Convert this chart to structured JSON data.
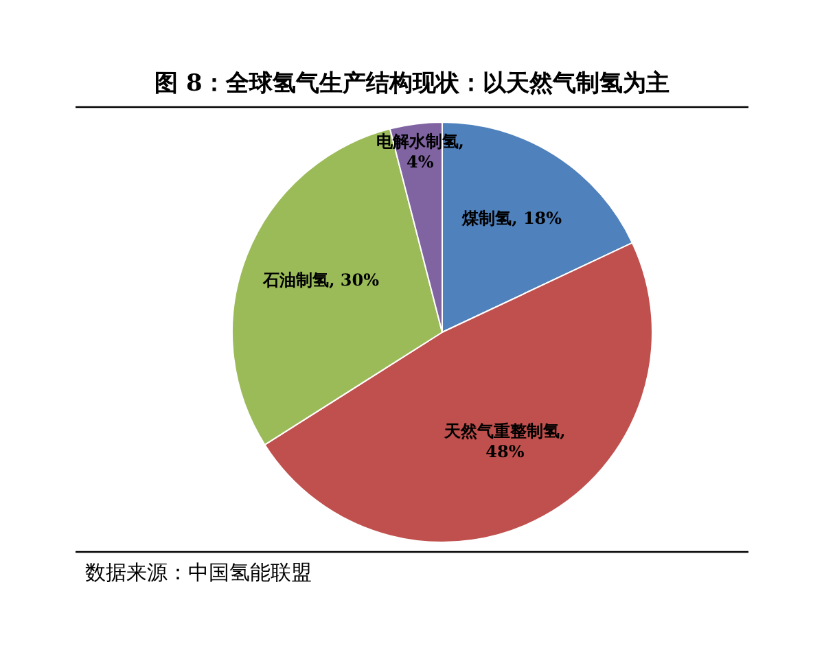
{
  "chart_data": {
    "type": "pie",
    "title": "图 8：全球氢气生产结构现状：以天然气制氢为主",
    "categories": [
      "煤制氢",
      "天然气重整制氢",
      "石油制氢",
      "电解水制氢"
    ],
    "values": [
      18,
      48,
      30,
      4
    ],
    "colors": [
      "#4f81bd",
      "#c0504d",
      "#9bbb59",
      "#8064a2"
    ],
    "value_labels": [
      ", 18%",
      ",\n48%",
      ", 30%",
      ",\n4%"
    ],
    "annotations": [
      "数据来源：中国氢能联盟"
    ]
  }
}
